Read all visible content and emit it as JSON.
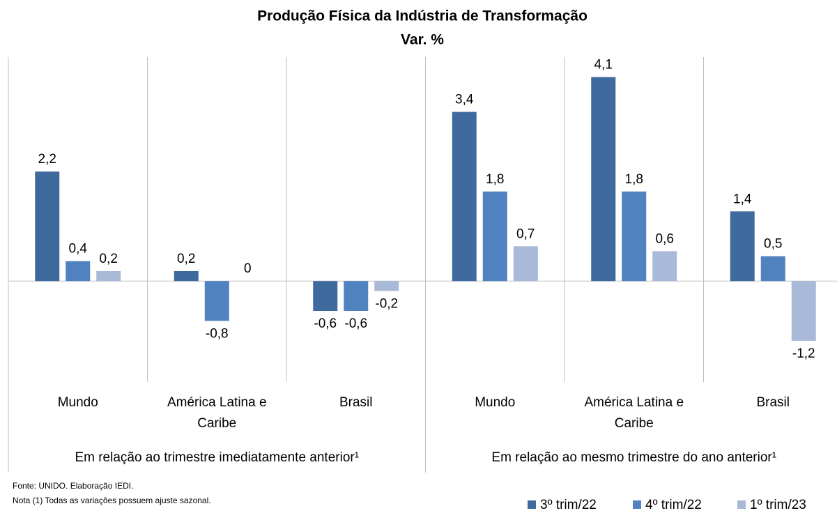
{
  "chart_data": {
    "type": "bar",
    "title": "Produção Física da Indústria de Transformação",
    "subtitle": "Var. %",
    "categories": [
      "Mundo",
      "América Latina e Caribe",
      "Brasil",
      "Mundo",
      "América Latina e Caribe",
      "Brasil"
    ],
    "groups": [
      "Em relação ao trimestre imediatamente anterior¹",
      "Em relação ao mesmo trimestre do ano anterior¹"
    ],
    "series": [
      {
        "name": "3º trim/22",
        "color": "#3f6a9e",
        "values": [
          2.2,
          0.2,
          -0.6,
          3.4,
          4.1,
          1.4
        ],
        "value_labels": [
          "2,2",
          "0,2",
          "-0,6",
          "3,4",
          "4,1",
          "1,4"
        ]
      },
      {
        "name": "4º trim/22",
        "color": "#4f82be",
        "values": [
          0.4,
          -0.8,
          -0.6,
          1.8,
          1.8,
          0.5
        ],
        "value_labels": [
          "0,4",
          "-0,8",
          "-0,6",
          "1,8",
          "1,8",
          "0,5"
        ]
      },
      {
        "name": "1º trim/23",
        "color": "#a9b9d8",
        "values": [
          0.2,
          0,
          -0.2,
          0.7,
          0.6,
          -1.2
        ],
        "value_labels": [
          "0,2",
          "0",
          "-0,2",
          "0,7",
          "0,6",
          "-1,2"
        ]
      }
    ],
    "ylim": [
      -2,
      4.5
    ],
    "legend": "bottom-right",
    "footnotes": [
      "Fonte: UNIDO. Elaboração IEDI.",
      "Nota (1) Todas as variações possuem ajuste sazonal."
    ]
  }
}
